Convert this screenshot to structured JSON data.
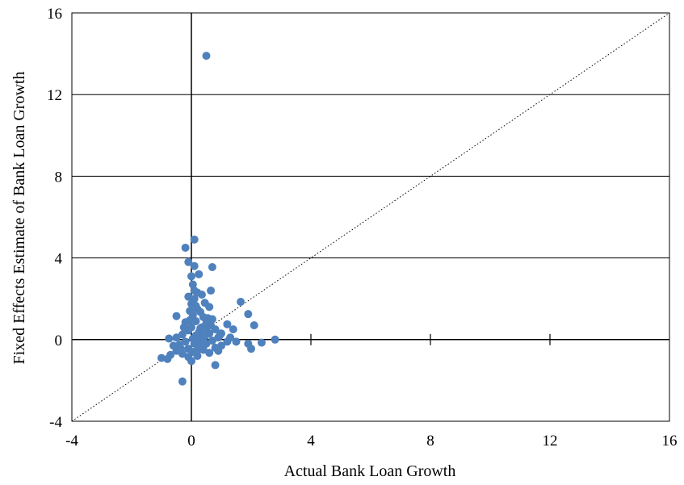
{
  "chart_data": {
    "type": "scatter",
    "xlabel": "Actual Bank Loan Growth",
    "ylabel": "Fixed Effects Estimate of Bank Loan Growth",
    "xlim": [
      -4,
      16
    ],
    "ylim": [
      -4,
      16
    ],
    "x_ticks": [
      -4,
      0,
      4,
      8,
      12,
      16
    ],
    "y_ticks": [
      -4,
      0,
      4,
      8,
      12,
      16
    ],
    "x_tick_labels": [
      "-4",
      "0",
      "4",
      "8",
      "12",
      "16"
    ],
    "y_tick_labels": [
      "-4",
      "0",
      "4",
      "8",
      "12",
      "16"
    ],
    "grid": "horizontal",
    "reference_line": "y = x",
    "marker_color": "#4f81bd",
    "series": [
      {
        "points": [
          [
            0.5,
            13.9
          ],
          [
            0.1,
            4.9
          ],
          [
            -0.2,
            4.5
          ],
          [
            -0.1,
            3.8
          ],
          [
            0.1,
            3.6
          ],
          [
            0.7,
            3.55
          ],
          [
            0.0,
            3.1
          ],
          [
            0.25,
            3.2
          ],
          [
            0.05,
            2.7
          ],
          [
            0.65,
            2.4
          ],
          [
            0.2,
            2.3
          ],
          [
            0.35,
            2.2
          ],
          [
            -0.1,
            2.1
          ],
          [
            0.1,
            2.0
          ],
          [
            1.65,
            1.85
          ],
          [
            0.45,
            1.8
          ],
          [
            0.0,
            1.75
          ],
          [
            0.6,
            1.6
          ],
          [
            0.2,
            1.5
          ],
          [
            -0.05,
            1.4
          ],
          [
            0.3,
            1.35
          ],
          [
            1.9,
            1.25
          ],
          [
            -0.5,
            1.15
          ],
          [
            0.05,
            1.2
          ],
          [
            0.4,
            1.1
          ],
          [
            0.7,
            1.0
          ],
          [
            0.15,
            0.9
          ],
          [
            -0.2,
            0.85
          ],
          [
            0.5,
            0.8
          ],
          [
            1.2,
            0.75
          ],
          [
            2.1,
            0.7
          ],
          [
            0.0,
            0.6
          ],
          [
            0.35,
            0.6
          ],
          [
            0.8,
            0.5
          ],
          [
            1.4,
            0.5
          ],
          [
            -0.1,
            0.45
          ],
          [
            0.25,
            0.35
          ],
          [
            0.6,
            0.3
          ],
          [
            1.0,
            0.3
          ],
          [
            -0.3,
            0.25
          ],
          [
            0.15,
            0.2
          ],
          [
            0.45,
            0.15
          ],
          [
            0.9,
            0.1
          ],
          [
            1.5,
            -0.1
          ],
          [
            -0.5,
            0.1
          ],
          [
            -0.75,
            0.05
          ],
          [
            0.05,
            0.05
          ],
          [
            0.3,
            0.0
          ],
          [
            0.7,
            -0.05
          ],
          [
            2.8,
            0.0
          ],
          [
            1.2,
            -0.1
          ],
          [
            1.9,
            -0.2
          ],
          [
            2.35,
            -0.15
          ],
          [
            -0.2,
            -0.1
          ],
          [
            0.1,
            -0.2
          ],
          [
            0.5,
            -0.2
          ],
          [
            1.0,
            -0.3
          ],
          [
            -0.4,
            -0.25
          ],
          [
            -0.6,
            -0.3
          ],
          [
            0.25,
            -0.35
          ],
          [
            0.8,
            -0.4
          ],
          [
            2.0,
            -0.45
          ],
          [
            -0.1,
            -0.45
          ],
          [
            0.4,
            -0.5
          ],
          [
            0.9,
            -0.55
          ],
          [
            -0.5,
            -0.55
          ],
          [
            0.05,
            -0.6
          ],
          [
            0.6,
            -0.65
          ],
          [
            -0.3,
            -0.7
          ],
          [
            -0.7,
            -0.75
          ],
          [
            0.2,
            -0.8
          ],
          [
            -0.1,
            -0.85
          ],
          [
            -1.0,
            -0.9
          ],
          [
            -0.8,
            -0.95
          ],
          [
            0.0,
            -1.05
          ],
          [
            0.8,
            -1.25
          ],
          [
            -0.3,
            -2.05
          ],
          [
            0.3,
            0.55
          ],
          [
            0.55,
            1.05
          ],
          [
            0.15,
            1.65
          ],
          [
            -0.05,
            0.95
          ],
          [
            0.95,
            0.2
          ],
          [
            1.3,
            0.1
          ],
          [
            0.35,
            -0.1
          ],
          [
            -0.25,
            0.6
          ],
          [
            0.65,
            0.7
          ],
          [
            0.1,
            2.4
          ],
          [
            0.5,
            0.45
          ],
          [
            -0.35,
            -0.45
          ],
          [
            0.2,
            -0.55
          ]
        ]
      }
    ]
  }
}
